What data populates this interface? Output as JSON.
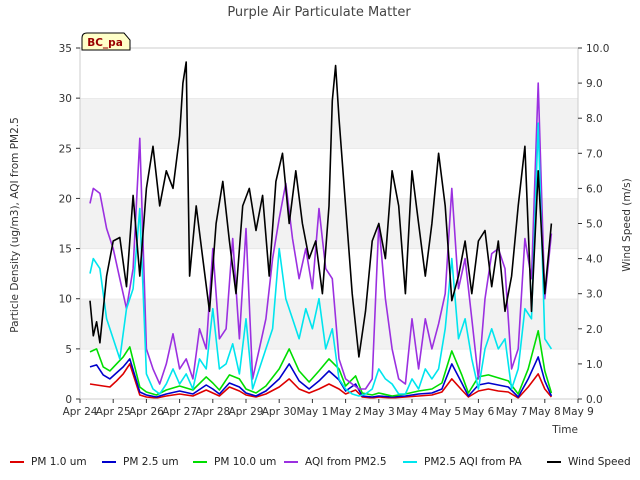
{
  "chart_data": {
    "type": "line",
    "title": "Purple Air Particulate Matter",
    "xlabel": "Time",
    "ylabel": "Particle Density (ug/m3), AQI from PM2.5",
    "y2label": "Wind Speed (m/s)",
    "site_badge": "BC_pa",
    "ylim": [
      0,
      35
    ],
    "y2lim": [
      0,
      10
    ],
    "yticks": [
      "0",
      "5",
      "10",
      "15",
      "20",
      "25",
      "30",
      "35"
    ],
    "y2ticks": [
      "0.0",
      "1.0",
      "2.0",
      "3.0",
      "4.0",
      "5.0",
      "6.0",
      "7.0",
      "8.0",
      "9.0",
      "10.0"
    ],
    "xlim": [
      0,
      15
    ],
    "xticks": [
      "Apr 24",
      "Apr 25",
      "Apr 26",
      "Apr 27",
      "Apr 28",
      "Apr 29",
      "Apr 30",
      "May 1",
      "May 2",
      "May 3",
      "May 4",
      "May 5",
      "May 6",
      "May 7",
      "May 8",
      "May 9"
    ],
    "grid": "alternating horizontal bands",
    "legend": "bottom",
    "series": [
      {
        "name": "PM 1.0 um",
        "color": "#dd0000",
        "axis": "left",
        "x": [
          0.3,
          0.5,
          0.7,
          0.9,
          1.1,
          1.3,
          1.5,
          1.8,
          2.0,
          2.3,
          2.6,
          3.0,
          3.4,
          3.8,
          4.0,
          4.2,
          4.5,
          4.8,
          5.0,
          5.3,
          5.6,
          6.0,
          6.3,
          6.6,
          6.9,
          7.2,
          7.5,
          7.8,
          8.0,
          8.3,
          8.5,
          8.8,
          9.0,
          9.4,
          9.8,
          10.2,
          10.6,
          10.9,
          11.2,
          11.5,
          11.7,
          12.0,
          12.3,
          12.6,
          12.9,
          13.2,
          13.5,
          13.8,
          14.0,
          14.2
        ],
        "y": [
          1.5,
          1.4,
          1.3,
          1.2,
          1.8,
          2.5,
          3.5,
          0.4,
          0.2,
          0.1,
          0.3,
          0.5,
          0.3,
          0.9,
          0.6,
          0.3,
          1.2,
          0.8,
          0.4,
          0.2,
          0.5,
          1.2,
          2.0,
          1.0,
          0.6,
          1.0,
          1.5,
          1.0,
          0.5,
          0.9,
          0.2,
          0.1,
          0.2,
          0.1,
          0.2,
          0.3,
          0.4,
          0.7,
          2.0,
          0.9,
          0.2,
          0.8,
          1.0,
          0.8,
          0.7,
          0.1,
          1.2,
          2.5,
          1.0,
          0.2
        ]
      },
      {
        "name": "PM 2.5 um",
        "color": "#0000cc",
        "axis": "left",
        "x": [
          0.3,
          0.5,
          0.7,
          0.9,
          1.1,
          1.3,
          1.5,
          1.8,
          2.0,
          2.3,
          2.6,
          3.0,
          3.4,
          3.8,
          4.0,
          4.2,
          4.5,
          4.8,
          5.0,
          5.3,
          5.6,
          6.0,
          6.3,
          6.6,
          6.9,
          7.2,
          7.5,
          7.8,
          8.0,
          8.3,
          8.5,
          8.8,
          9.0,
          9.4,
          9.8,
          10.2,
          10.6,
          10.9,
          11.2,
          11.5,
          11.7,
          12.0,
          12.3,
          12.6,
          12.9,
          13.2,
          13.5,
          13.8,
          14.0,
          14.2
        ],
        "y": [
          3.2,
          3.4,
          2.4,
          2.0,
          2.6,
          3.2,
          4.0,
          0.7,
          0.4,
          0.2,
          0.5,
          0.8,
          0.5,
          1.4,
          1.0,
          0.5,
          1.6,
          1.2,
          0.6,
          0.3,
          0.8,
          2.0,
          3.5,
          1.8,
          1.0,
          1.8,
          2.8,
          1.9,
          0.8,
          1.5,
          0.3,
          0.2,
          0.3,
          0.2,
          0.3,
          0.5,
          0.6,
          1.0,
          3.5,
          1.6,
          0.3,
          1.4,
          1.6,
          1.4,
          1.2,
          0.2,
          2.0,
          4.2,
          1.8,
          0.3
        ]
      },
      {
        "name": "PM 10.0 um",
        "color": "#00dd00",
        "axis": "left",
        "x": [
          0.3,
          0.5,
          0.7,
          0.9,
          1.1,
          1.3,
          1.5,
          1.8,
          2.0,
          2.3,
          2.6,
          3.0,
          3.4,
          3.8,
          4.0,
          4.2,
          4.5,
          4.8,
          5.0,
          5.3,
          5.6,
          6.0,
          6.3,
          6.6,
          6.9,
          7.2,
          7.5,
          7.8,
          8.0,
          8.3,
          8.5,
          8.8,
          9.0,
          9.4,
          9.8,
          10.2,
          10.6,
          10.9,
          11.2,
          11.5,
          11.7,
          12.0,
          12.3,
          12.6,
          12.9,
          13.2,
          13.5,
          13.8,
          14.0,
          14.2
        ],
        "y": [
          4.7,
          5.0,
          3.2,
          2.8,
          3.5,
          4.2,
          5.2,
          1.2,
          0.7,
          0.4,
          0.9,
          1.3,
          0.9,
          2.2,
          1.6,
          0.9,
          2.4,
          2.0,
          1.0,
          0.6,
          1.3,
          3.0,
          5.0,
          2.8,
          1.7,
          2.8,
          4.0,
          3.0,
          1.3,
          2.3,
          0.6,
          0.4,
          0.6,
          0.3,
          0.5,
          0.8,
          1.0,
          1.6,
          4.8,
          2.4,
          0.6,
          2.2,
          2.4,
          2.1,
          1.8,
          0.5,
          3.0,
          6.8,
          2.8,
          0.6
        ]
      },
      {
        "name": "AQI from PM2.5",
        "color": "#9b30e0",
        "axis": "left",
        "x": [
          0.3,
          0.4,
          0.6,
          0.8,
          1.0,
          1.2,
          1.4,
          1.6,
          1.8,
          2.0,
          2.2,
          2.4,
          2.6,
          2.8,
          3.0,
          3.2,
          3.4,
          3.6,
          3.8,
          4.0,
          4.2,
          4.4,
          4.6,
          4.8,
          5.0,
          5.2,
          5.4,
          5.6,
          5.8,
          6.0,
          6.2,
          6.4,
          6.6,
          6.8,
          7.0,
          7.2,
          7.4,
          7.6,
          7.8,
          8.0,
          8.2,
          8.4,
          8.6,
          8.8,
          9.0,
          9.2,
          9.4,
          9.6,
          9.8,
          10.0,
          10.2,
          10.4,
          10.6,
          10.8,
          11.0,
          11.2,
          11.4,
          11.6,
          11.8,
          12.0,
          12.2,
          12.4,
          12.6,
          12.8,
          13.0,
          13.2,
          13.4,
          13.6,
          13.8,
          14.0,
          14.2
        ],
        "y": [
          19.5,
          21.0,
          20.5,
          17.0,
          15.0,
          12.0,
          9.0,
          13.0,
          26.0,
          5.0,
          3.0,
          1.5,
          3.5,
          6.5,
          3.0,
          4.0,
          2.0,
          7.0,
          5.0,
          15.0,
          6.0,
          7.0,
          16.0,
          6.0,
          17.0,
          2.0,
          5.0,
          8.0,
          14.0,
          18.0,
          21.5,
          16.0,
          12.0,
          15.0,
          11.0,
          19.0,
          13.0,
          12.0,
          4.0,
          2.0,
          1.5,
          1.0,
          1.0,
          2.0,
          17.5,
          10.0,
          5.0,
          2.0,
          1.5,
          8.0,
          3.0,
          8.0,
          5.0,
          7.5,
          10.5,
          21.0,
          11.0,
          14.0,
          8.0,
          2.0,
          10.0,
          14.5,
          15.0,
          13.0,
          3.0,
          5.0,
          16.0,
          12.0,
          31.5,
          10.0,
          16.5
        ]
      },
      {
        "name": "PM2.5 AQI from PA",
        "color": "#00e5ee",
        "axis": "left",
        "x": [
          0.3,
          0.4,
          0.6,
          0.8,
          1.0,
          1.2,
          1.4,
          1.6,
          1.8,
          2.0,
          2.2,
          2.4,
          2.6,
          2.8,
          3.0,
          3.2,
          3.4,
          3.6,
          3.8,
          4.0,
          4.2,
          4.4,
          4.6,
          4.8,
          5.0,
          5.2,
          5.4,
          5.6,
          5.8,
          6.0,
          6.2,
          6.4,
          6.6,
          6.8,
          7.0,
          7.2,
          7.4,
          7.6,
          7.8,
          8.0,
          8.2,
          8.4,
          8.6,
          8.8,
          9.0,
          9.2,
          9.4,
          9.6,
          9.8,
          10.0,
          10.2,
          10.4,
          10.6,
          10.8,
          11.0,
          11.2,
          11.4,
          11.6,
          11.8,
          12.0,
          12.2,
          12.4,
          12.6,
          12.8,
          13.0,
          13.2,
          13.4,
          13.6,
          13.8,
          14.0,
          14.2
        ],
        "y": [
          12.5,
          14.0,
          13.0,
          8.0,
          6.0,
          4.0,
          9.0,
          11.0,
          19.0,
          2.5,
          1.0,
          0.5,
          1.5,
          3.0,
          1.5,
          2.5,
          1.0,
          4.0,
          3.0,
          9.0,
          3.0,
          3.5,
          5.5,
          2.5,
          8.0,
          1.0,
          3.0,
          5.0,
          7.0,
          15.0,
          10.0,
          8.0,
          6.0,
          9.0,
          7.0,
          10.0,
          5.0,
          7.0,
          2.0,
          1.0,
          0.5,
          0.3,
          0.5,
          1.0,
          3.0,
          2.0,
          1.5,
          0.5,
          0.5,
          2.0,
          1.0,
          3.0,
          2.0,
          3.0,
          7.0,
          14.0,
          6.0,
          8.0,
          4.0,
          1.0,
          5.0,
          7.0,
          5.0,
          6.0,
          1.0,
          3.0,
          9.0,
          8.0,
          27.5,
          6.0,
          5.0
        ]
      },
      {
        "name": "Wind Speed",
        "color": "#000000",
        "axis": "right",
        "x": [
          0.3,
          0.4,
          0.5,
          0.6,
          0.8,
          1.0,
          1.2,
          1.4,
          1.6,
          1.8,
          2.0,
          2.2,
          2.4,
          2.6,
          2.8,
          3.0,
          3.1,
          3.2,
          3.3,
          3.5,
          3.7,
          3.9,
          4.1,
          4.3,
          4.5,
          4.7,
          4.9,
          5.1,
          5.3,
          5.5,
          5.7,
          5.9,
          6.1,
          6.3,
          6.5,
          6.7,
          6.9,
          7.1,
          7.3,
          7.5,
          7.6,
          7.7,
          7.8,
          8.0,
          8.2,
          8.4,
          8.6,
          8.8,
          9.0,
          9.2,
          9.4,
          9.6,
          9.8,
          10.0,
          10.2,
          10.4,
          10.6,
          10.8,
          11.0,
          11.2,
          11.4,
          11.6,
          11.8,
          12.0,
          12.2,
          12.4,
          12.6,
          12.8,
          13.0,
          13.2,
          13.4,
          13.6,
          13.8,
          14.0,
          14.2
        ],
        "y": [
          2.8,
          1.8,
          2.2,
          1.6,
          3.5,
          4.5,
          4.6,
          3.2,
          5.8,
          3.5,
          6.0,
          7.2,
          5.5,
          6.5,
          6.0,
          7.5,
          9.0,
          9.6,
          3.5,
          5.5,
          4.0,
          2.5,
          5.0,
          6.2,
          4.5,
          3.0,
          5.5,
          6.0,
          4.8,
          5.8,
          3.5,
          6.2,
          7.0,
          5.0,
          6.5,
          5.0,
          4.0,
          4.5,
          3.0,
          5.5,
          8.5,
          9.5,
          8.0,
          5.5,
          3.0,
          1.2,
          2.5,
          4.5,
          5.0,
          4.0,
          6.5,
          5.5,
          3.0,
          6.5,
          5.0,
          3.5,
          5.0,
          7.0,
          5.5,
          2.8,
          3.5,
          4.5,
          3.0,
          4.5,
          4.8,
          3.2,
          4.5,
          2.5,
          3.5,
          5.5,
          7.2,
          2.5,
          6.5,
          3.0,
          5.0
        ]
      }
    ]
  }
}
